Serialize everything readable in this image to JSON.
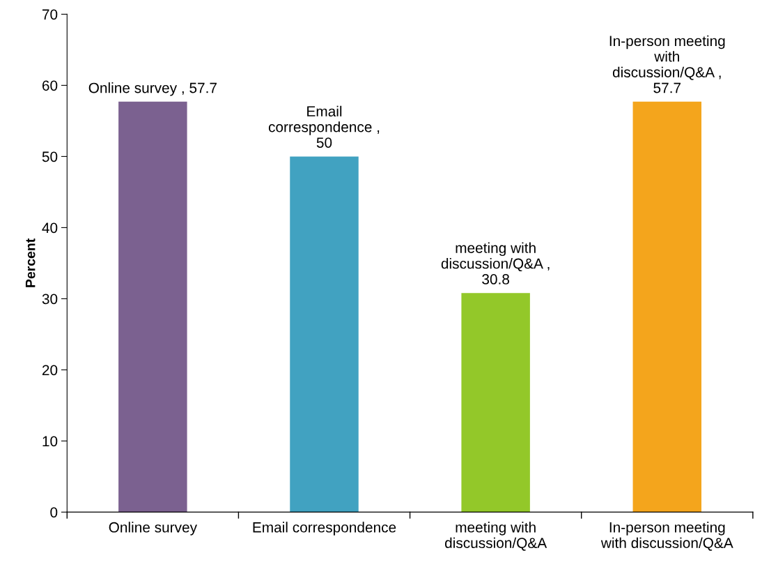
{
  "chart_data": {
    "type": "bar",
    "ylabel": "Percent",
    "categories": [
      "Online survey",
      "Email correspondence",
      "meeting with\ndiscussion/Q&A",
      "In-person meeting\nwith discussion/Q&A"
    ],
    "values": [
      57.7,
      50,
      30.8,
      57.7
    ],
    "colors": [
      "#7b6190",
      "#41a2c1",
      "#93c829",
      "#f4a51c"
    ],
    "value_labels": [
      "Online survey , 57.7",
      "Email\ncorrespondence ,\n50",
      "meeting with\ndiscussion/Q&A ,\n30.8",
      "In-person meeting\nwith\ndiscussion/Q&A ,\n57.7"
    ],
    "ylim": [
      0,
      70
    ],
    "yticks": [
      0,
      10,
      20,
      30,
      40,
      50,
      60,
      70
    ],
    "grid": false,
    "legend": false
  }
}
